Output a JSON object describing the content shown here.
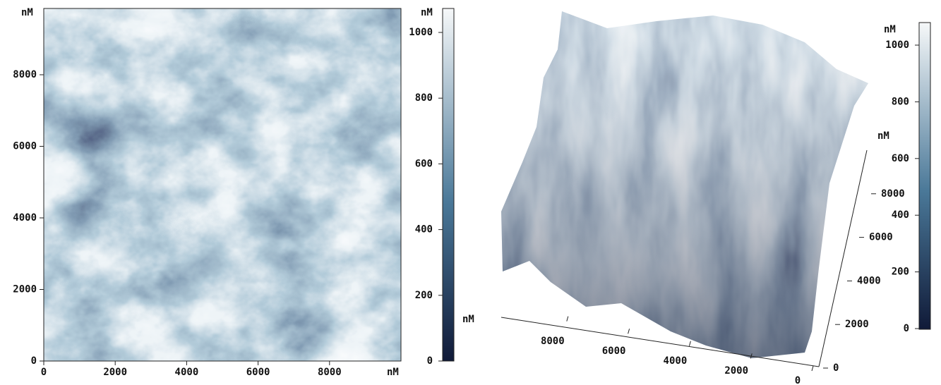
{
  "map": {
    "y_unit": "nM",
    "x_unit": "nM",
    "xticks": [
      0,
      2000,
      4000,
      6000,
      8000
    ],
    "yticks": [
      0,
      2000,
      4000,
      6000,
      8000
    ],
    "colorbar": {
      "unit": "nM",
      "side_unit": "nM",
      "ticks": [
        0,
        200,
        400,
        600,
        800,
        1000
      ]
    }
  },
  "surface": {
    "x_axis": {
      "ticks": [
        0,
        2000,
        4000,
        6000,
        8000
      ]
    },
    "y_axis": {
      "unit": "nM",
      "ticks": [
        0,
        2000,
        4000,
        6000,
        8000
      ]
    },
    "colorbar": {
      "unit": "nM",
      "ticks": [
        0,
        200,
        400,
        600,
        800,
        1000
      ]
    }
  }
}
